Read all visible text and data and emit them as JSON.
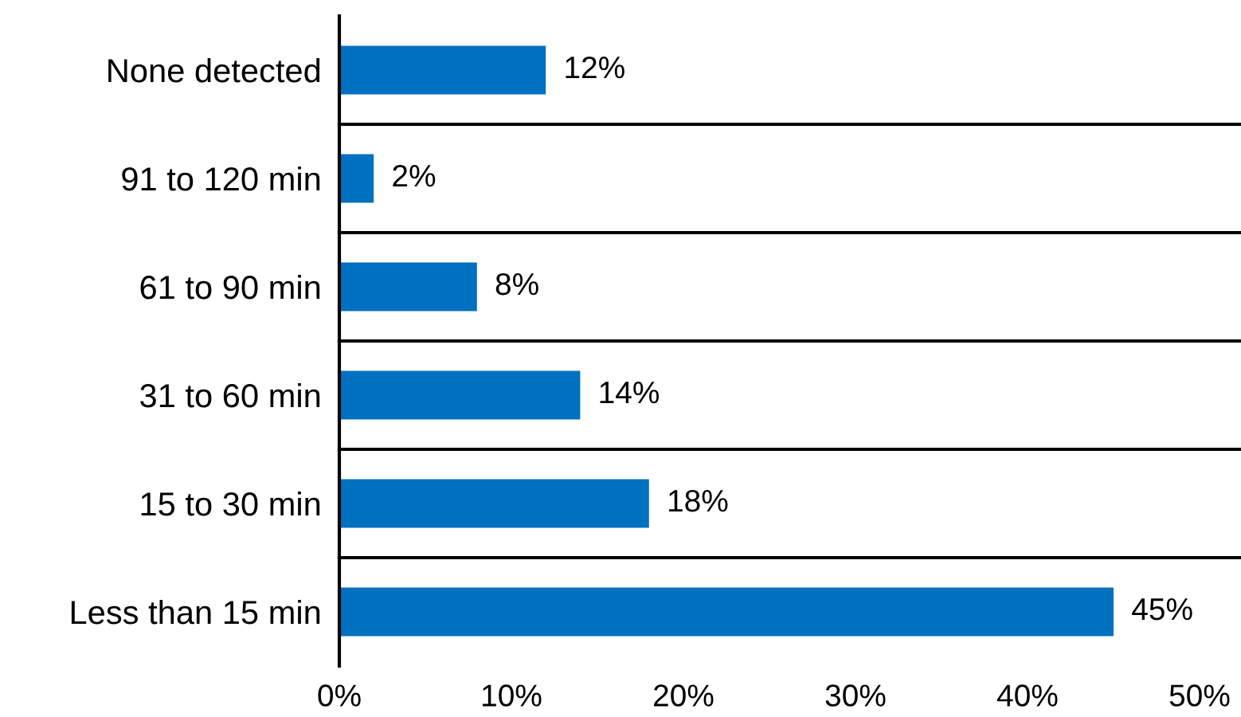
{
  "chart_data": {
    "type": "bar",
    "orientation": "horizontal",
    "categories": [
      "None detected",
      "91 to 120 min",
      "61 to 90 min",
      "31 to 60 min",
      "15 to 30 min",
      "Less than 15 min"
    ],
    "values": [
      12,
      2,
      8,
      14,
      18,
      45
    ],
    "value_labels": [
      "12%",
      "2%",
      "8%",
      "14%",
      "18%",
      "45%"
    ],
    "color": "#0070c0",
    "xlim": [
      0,
      50
    ],
    "xticks": [
      {
        "value": 0,
        "label": "0%"
      },
      {
        "value": 10,
        "label": "10%"
      },
      {
        "value": 20,
        "label": "20%"
      },
      {
        "value": 30,
        "label": "30%"
      },
      {
        "value": 40,
        "label": "40%"
      },
      {
        "value": 50,
        "label": "50%"
      }
    ],
    "grid": "y"
  }
}
